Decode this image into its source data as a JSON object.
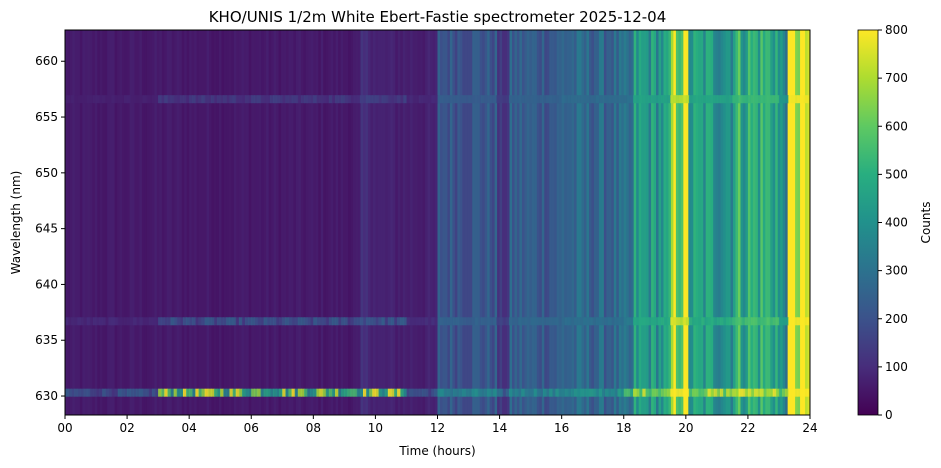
{
  "chart_data": {
    "type": "heatmap",
    "title": "KHO/UNIS 1/2m White Ebert-Fastie spectrometer 2025-12-04",
    "xlabel": "Time (hours)",
    "ylabel": "Wavelength (nm)",
    "xlim": [
      0,
      24
    ],
    "ylim": [
      628.3,
      662.8
    ],
    "x_ticks": [
      {
        "value": 0,
        "label": "00"
      },
      {
        "value": 2,
        "label": "02"
      },
      {
        "value": 4,
        "label": "04"
      },
      {
        "value": 6,
        "label": "06"
      },
      {
        "value": 8,
        "label": "08"
      },
      {
        "value": 10,
        "label": "10"
      },
      {
        "value": 12,
        "label": "12"
      },
      {
        "value": 14,
        "label": "14"
      },
      {
        "value": 16,
        "label": "16"
      },
      {
        "value": 18,
        "label": "18"
      },
      {
        "value": 20,
        "label": "20"
      },
      {
        "value": 22,
        "label": "22"
      },
      {
        "value": 24,
        "label": "24"
      }
    ],
    "y_ticks": [
      {
        "value": 630,
        "label": "630"
      },
      {
        "value": 635,
        "label": "635"
      },
      {
        "value": 640,
        "label": "640"
      },
      {
        "value": 645,
        "label": "645"
      },
      {
        "value": 650,
        "label": "650"
      },
      {
        "value": 655,
        "label": "655"
      },
      {
        "value": 660,
        "label": "660"
      }
    ],
    "colorbar": {
      "label": "Counts",
      "colormap": "viridis",
      "range": [
        0,
        800
      ],
      "ticks": [
        {
          "value": 0,
          "label": "0"
        },
        {
          "value": 100,
          "label": "100"
        },
        {
          "value": 200,
          "label": "200"
        },
        {
          "value": 300,
          "label": "300"
        },
        {
          "value": 400,
          "label": "400"
        },
        {
          "value": 500,
          "label": "500"
        },
        {
          "value": 600,
          "label": "600"
        },
        {
          "value": 700,
          "label": "700"
        },
        {
          "value": 800,
          "label": "800"
        }
      ]
    },
    "background_intensity": [
      {
        "t0": 0.0,
        "t1": 9.5,
        "counts": 55
      },
      {
        "t0": 9.5,
        "t1": 10.0,
        "counts": 95
      },
      {
        "t0": 10.0,
        "t1": 12.0,
        "counts": 70
      },
      {
        "t0": 12.0,
        "t1": 13.9,
        "counts": 215
      },
      {
        "t0": 13.9,
        "t1": 14.3,
        "counts": 120
      },
      {
        "t0": 14.3,
        "t1": 16.0,
        "counts": 230
      },
      {
        "t0": 16.0,
        "t1": 18.3,
        "counts": 260
      },
      {
        "t0": 18.3,
        "t1": 19.5,
        "counts": 420
      },
      {
        "t0": 19.5,
        "t1": 20.1,
        "counts": 680
      },
      {
        "t0": 20.1,
        "t1": 21.5,
        "counts": 430
      },
      {
        "t0": 21.5,
        "t1": 23.0,
        "counts": 500
      },
      {
        "t0": 23.0,
        "t1": 23.3,
        "counts": 380
      },
      {
        "t0": 23.3,
        "t1": 24.0,
        "counts": 760
      }
    ],
    "emission_lines": [
      {
        "wavelength": 630.3,
        "peak_counts": 800
      },
      {
        "wavelength": 636.7,
        "peak_counts": 200
      },
      {
        "wavelength": 656.6,
        "peak_counts": 110
      }
    ]
  }
}
